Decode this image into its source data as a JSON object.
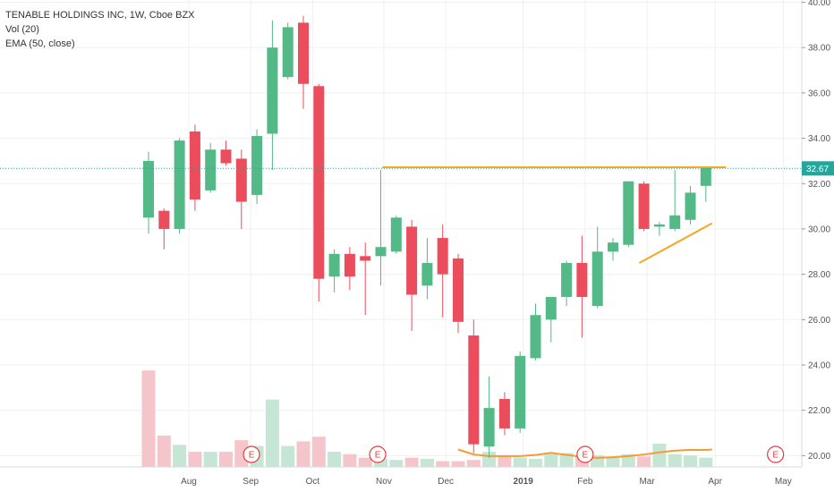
{
  "legend": {
    "title": "TENABLE HOLDINGS INC, 1W, Cboe BZX",
    "vol": "Vol (20)",
    "ema": "EMA (50, close)"
  },
  "colors": {
    "up": "#53b987",
    "down": "#eb4d5c",
    "up_vol": "#c5e6d5",
    "down_vol": "#f4c6cb",
    "price_line": "#26a69a",
    "price_tag": "#26a69a",
    "ema": "#f39c34",
    "trendline": "#f5a623",
    "grid": "#eef0f3",
    "earnings": "#e53935"
  },
  "chart_data": {
    "type": "candlestick",
    "title": "TENABLE HOLDINGS INC, 1W, Cboe BZX",
    "y_ticks": [
      "40.00",
      "38.00",
      "36.00",
      "34.00",
      "32.00",
      "30.00",
      "28.00",
      "26.00",
      "24.00",
      "22.00",
      "20.00"
    ],
    "y_range": [
      19.5,
      40.1
    ],
    "x_labels": [
      {
        "label": "Aug",
        "week": 2.6
      },
      {
        "label": "Sep",
        "week": 6.6
      },
      {
        "label": "Oct",
        "week": 10.6
      },
      {
        "label": "Nov",
        "week": 15.2
      },
      {
        "label": "Dec",
        "week": 19.2
      },
      {
        "label": "2019",
        "week": 24.2
      },
      {
        "label": "Feb",
        "week": 28.2
      },
      {
        "label": "Mar",
        "week": 32.2
      },
      {
        "label": "Apr",
        "week": 36.6
      },
      {
        "label": "May",
        "week": 41.0
      }
    ],
    "last_price": 32.67,
    "last_price_label": "32.67",
    "candles": [
      {
        "o": 30.5,
        "h": 33.4,
        "l": 29.8,
        "c": 33.0
      },
      {
        "o": 30.8,
        "h": 30.9,
        "l": 29.1,
        "c": 30.0
      },
      {
        "o": 30.0,
        "h": 34.0,
        "l": 29.8,
        "c": 33.9
      },
      {
        "o": 34.3,
        "h": 34.6,
        "l": 30.8,
        "c": 31.3
      },
      {
        "o": 31.7,
        "h": 33.8,
        "l": 31.6,
        "c": 33.5
      },
      {
        "o": 33.5,
        "h": 33.9,
        "l": 32.8,
        "c": 32.9
      },
      {
        "o": 33.1,
        "h": 33.5,
        "l": 30.0,
        "c": 31.2
      },
      {
        "o": 31.5,
        "h": 34.4,
        "l": 31.1,
        "c": 34.1
      },
      {
        "o": 34.2,
        "h": 39.2,
        "l": 32.6,
        "c": 38.0
      },
      {
        "o": 36.7,
        "h": 39.1,
        "l": 36.6,
        "c": 38.9
      },
      {
        "o": 39.1,
        "h": 39.4,
        "l": 35.3,
        "c": 36.4
      },
      {
        "o": 36.3,
        "h": 36.4,
        "l": 26.8,
        "c": 27.8
      },
      {
        "o": 27.9,
        "h": 29.1,
        "l": 27.2,
        "c": 28.9
      },
      {
        "o": 28.9,
        "h": 29.2,
        "l": 27.3,
        "c": 27.9
      },
      {
        "o": 28.8,
        "h": 29.4,
        "l": 26.2,
        "c": 28.6
      },
      {
        "o": 28.8,
        "h": 32.6,
        "l": 27.5,
        "c": 29.2
      },
      {
        "o": 29.0,
        "h": 30.6,
        "l": 28.9,
        "c": 30.5
      },
      {
        "o": 30.1,
        "h": 30.4,
        "l": 25.5,
        "c": 27.1
      },
      {
        "o": 27.5,
        "h": 29.6,
        "l": 26.9,
        "c": 28.5
      },
      {
        "o": 29.6,
        "h": 30.2,
        "l": 26.1,
        "c": 28.0
      },
      {
        "o": 28.7,
        "h": 28.9,
        "l": 25.4,
        "c": 25.9
      },
      {
        "o": 25.3,
        "h": 26.0,
        "l": 20.1,
        "c": 20.5
      },
      {
        "o": 20.4,
        "h": 23.5,
        "l": 19.9,
        "c": 22.1
      },
      {
        "o": 22.5,
        "h": 22.8,
        "l": 20.9,
        "c": 21.2
      },
      {
        "o": 21.2,
        "h": 24.6,
        "l": 21.0,
        "c": 24.4
      },
      {
        "o": 24.3,
        "h": 26.7,
        "l": 24.2,
        "c": 26.2
      },
      {
        "o": 26.0,
        "h": 27.0,
        "l": 25.0,
        "c": 27.0
      },
      {
        "o": 27.0,
        "h": 28.6,
        "l": 26.6,
        "c": 28.5
      },
      {
        "o": 28.5,
        "h": 29.7,
        "l": 25.2,
        "c": 27.0
      },
      {
        "o": 26.6,
        "h": 30.1,
        "l": 26.5,
        "c": 29.0
      },
      {
        "o": 29.0,
        "h": 29.6,
        "l": 28.6,
        "c": 29.4
      },
      {
        "o": 29.3,
        "h": 32.1,
        "l": 29.2,
        "c": 32.1
      },
      {
        "o": 32.0,
        "h": 32.1,
        "l": 29.9,
        "c": 30.0
      },
      {
        "o": 30.1,
        "h": 30.3,
        "l": 29.7,
        "c": 30.2
      },
      {
        "o": 30.0,
        "h": 32.6,
        "l": 29.9,
        "c": 30.6
      },
      {
        "o": 30.4,
        "h": 31.9,
        "l": 30.2,
        "c": 31.6
      },
      {
        "o": 31.9,
        "h": 32.7,
        "l": 31.2,
        "c": 32.7
      }
    ],
    "volume_relative": [
      0.83,
      0.27,
      0.19,
      0.13,
      0.13,
      0.13,
      0.23,
      0.18,
      0.58,
      0.18,
      0.22,
      0.26,
      0.13,
      0.11,
      0.08,
      0.07,
      0.06,
      0.08,
      0.07,
      0.05,
      0.05,
      0.06,
      0.13,
      0.09,
      0.08,
      0.07,
      0.11,
      0.12,
      0.09,
      0.1,
      0.08,
      0.11,
      0.09,
      0.2,
      0.11,
      0.1,
      0.08
    ],
    "volume_bar_colors": [
      "down",
      "down",
      "up",
      "down",
      "up",
      "down",
      "down",
      "up",
      "up",
      "up",
      "down",
      "down",
      "up",
      "down",
      "down",
      "up",
      "up",
      "down",
      "up",
      "down",
      "down",
      "down",
      "up",
      "down",
      "up",
      "up",
      "up",
      "up",
      "down",
      "up",
      "up",
      "up",
      "down",
      "up",
      "up",
      "up",
      "up"
    ],
    "ema_points": [
      {
        "w": 20.0,
        "v": 20.27
      },
      {
        "w": 21.0,
        "v": 20.05
      },
      {
        "w": 22.0,
        "v": 19.98
      },
      {
        "w": 24.0,
        "v": 19.98
      },
      {
        "w": 25.0,
        "v": 20.03
      },
      {
        "w": 26.0,
        "v": 20.12
      },
      {
        "w": 27.0,
        "v": 20.03
      },
      {
        "w": 28.0,
        "v": 19.95
      },
      {
        "w": 29.0,
        "v": 19.9
      },
      {
        "w": 30.0,
        "v": 19.93
      },
      {
        "w": 31.0,
        "v": 19.98
      },
      {
        "w": 32.0,
        "v": 20.05
      },
      {
        "w": 33.0,
        "v": 20.14
      },
      {
        "w": 34.0,
        "v": 20.22
      },
      {
        "w": 35.0,
        "v": 20.25
      },
      {
        "w": 36.0,
        "v": 20.25
      },
      {
        "w": 36.4,
        "v": 20.27
      }
    ],
    "resistance_line": {
      "w1": 15.1,
      "w2": 37.3,
      "v": 32.72
    },
    "support_line": {
      "w1": 31.7,
      "w2": 36.4,
      "v1": 28.5,
      "v2": 30.25
    },
    "earnings_markers": [
      {
        "label": "E",
        "week": 6.65
      },
      {
        "label": "E",
        "week": 14.8
      },
      {
        "label": "E",
        "week": 28.2
      },
      {
        "label": "E",
        "week": 40.5
      }
    ]
  }
}
